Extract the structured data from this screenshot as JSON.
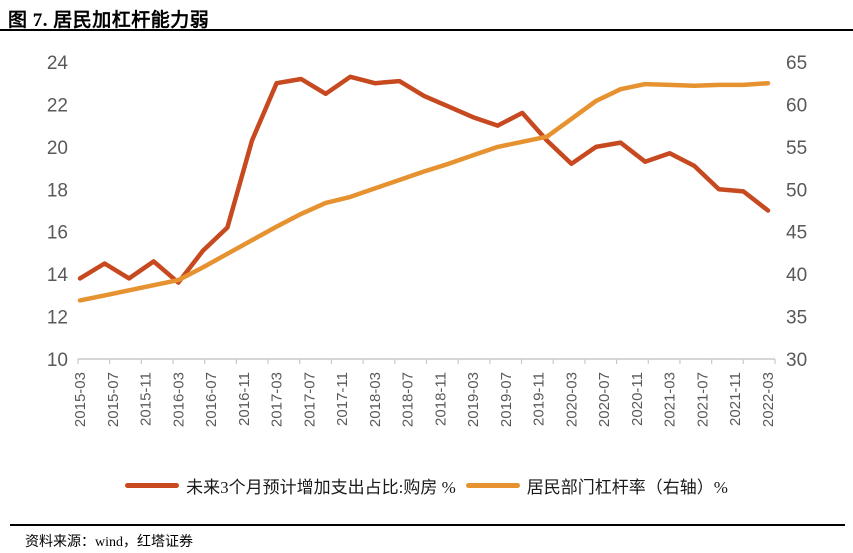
{
  "header": {
    "title": "图 7. 居民加杠杆能力弱"
  },
  "chart_data": {
    "type": "line",
    "title": "图 7. 居民加杠杆能力弱",
    "grid": false,
    "legend_position": "bottom",
    "x_tick_labels": [
      "2015-03",
      "2015-07",
      "2015-11",
      "2016-03",
      "2016-07",
      "2016-11",
      "2017-03",
      "2017-07",
      "2017-11",
      "2018-03",
      "2018-07",
      "2018-11",
      "2019-03",
      "2019-07",
      "2019-11",
      "2020-03",
      "2020-07",
      "2020-11",
      "2021-03",
      "2021-07",
      "2021-11",
      "2022-03"
    ],
    "x_months": [
      0,
      3,
      6,
      9,
      12,
      15,
      18,
      21,
      24,
      27,
      30,
      33,
      36,
      39,
      42,
      45,
      48,
      51,
      54,
      57,
      60,
      63,
      66,
      69,
      72,
      75,
      78,
      81,
      84
    ],
    "series": [
      {
        "name": "未来3个月预计增加支出占比:购房 %",
        "axis": "left",
        "color": "#C7491F",
        "values": [
          13.8,
          14.5,
          13.8,
          14.6,
          13.6,
          15.1,
          16.2,
          20.3,
          23.0,
          23.2,
          22.5,
          23.3,
          23.0,
          23.1,
          22.4,
          21.9,
          21.4,
          21.0,
          21.6,
          20.3,
          19.2,
          20.0,
          20.2,
          19.3,
          19.7,
          19.1,
          18.0,
          17.9,
          17.0
        ]
      },
      {
        "name": "居民部门杠杆率（右轴）%",
        "axis": "right",
        "color": "#E79230",
        "values": [
          36.9,
          37.5,
          38.1,
          38.7,
          39.3,
          40.8,
          42.4,
          44.0,
          45.6,
          47.1,
          48.4,
          49.1,
          50.1,
          51.1,
          52.1,
          53.0,
          54.0,
          55.0,
          55.6,
          56.2,
          58.3,
          60.4,
          61.8,
          62.4,
          62.3,
          62.2,
          62.3,
          62.3,
          62.5
        ]
      }
    ],
    "left_axis": {
      "min": 10,
      "max": 24,
      "ticks": [
        10,
        12,
        14,
        16,
        18,
        20,
        22,
        24
      ]
    },
    "right_axis": {
      "min": 30,
      "max": 65,
      "ticks": [
        30,
        35,
        40,
        45,
        50,
        55,
        60,
        65
      ]
    }
  },
  "legend": {
    "items": [
      {
        "label": "未来3个月预计增加支出占比:购房 %"
      },
      {
        "label": "居民部门杠杆率（右轴）%"
      }
    ]
  },
  "footer": {
    "source": "资料来源：wind，红塔证券"
  },
  "colors": {
    "series_red": "#C7491F",
    "series_orange": "#E79230",
    "axis_text": "#595959",
    "axis_line": "#C9C9C9",
    "rule": "#000000"
  }
}
